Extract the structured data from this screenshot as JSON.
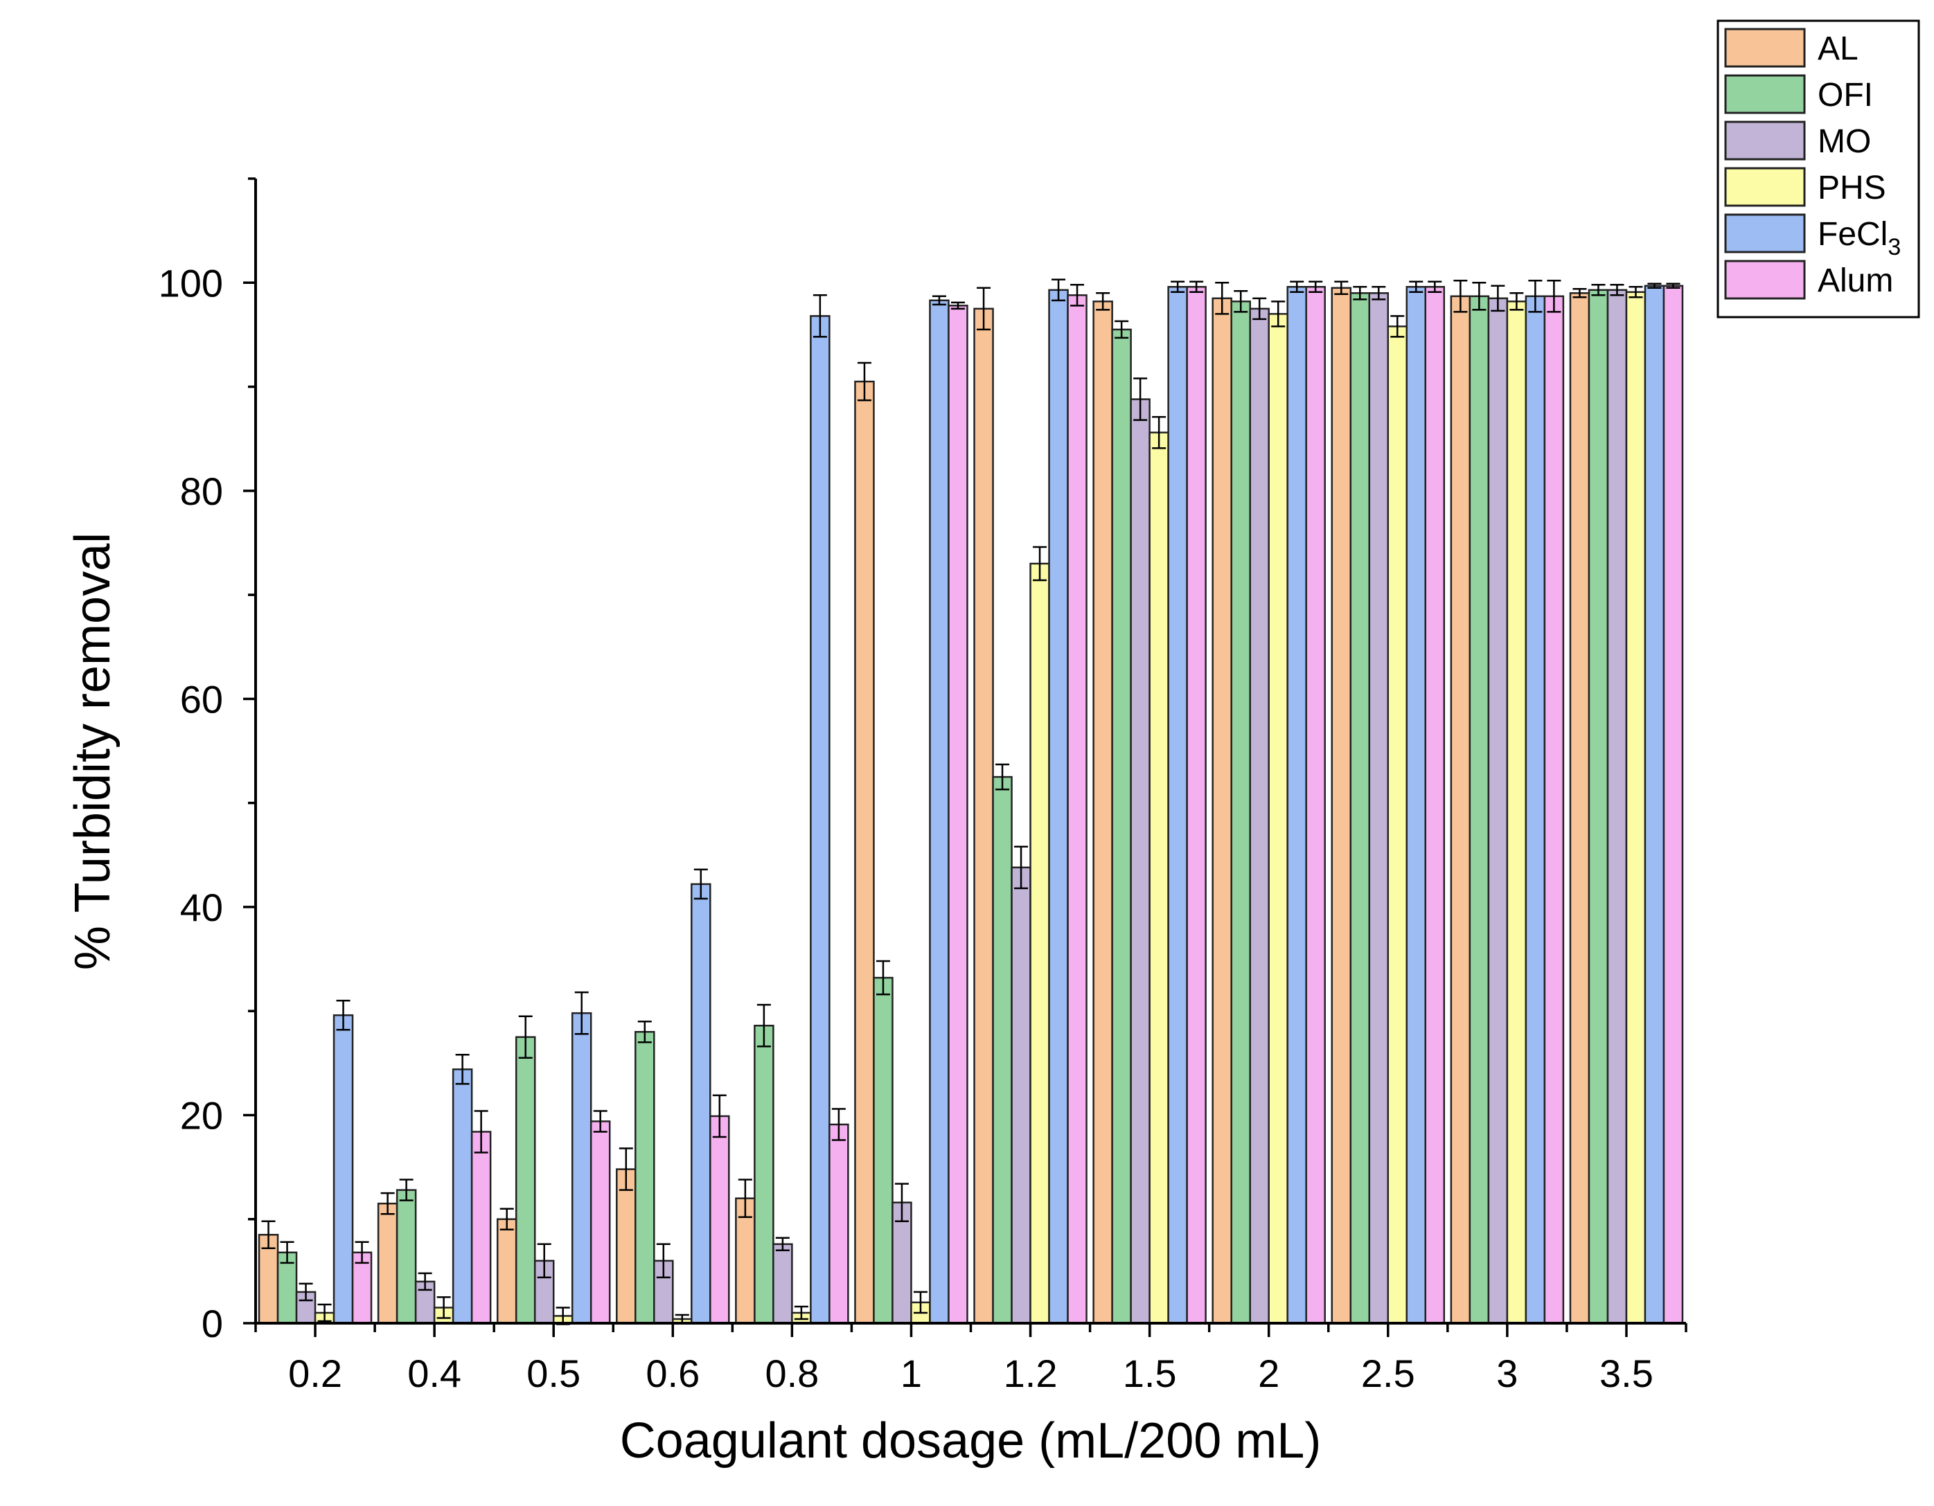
{
  "chart_data": {
    "type": "bar",
    "xlabel": "Coagulant dosage (mL/200 mL)",
    "ylabel": "% Turbidity removal",
    "ylim": [
      0,
      110
    ],
    "yticks": [
      0,
      20,
      40,
      60,
      80,
      100
    ],
    "categories": [
      "0.2",
      "0.4",
      "0.5",
      "0.6",
      "0.8",
      "1",
      "1.2",
      "1.5",
      "2",
      "2.5",
      "3",
      "3.5"
    ],
    "legend_position": "top-right",
    "grid": false,
    "series": [
      {
        "name": "AL",
        "color": "#f8c497",
        "values": [
          8.5,
          11.5,
          10.0,
          14.8,
          12.0,
          90.5,
          97.5,
          98.2,
          98.5,
          99.5,
          98.7,
          99.0
        ],
        "errors": [
          1.3,
          1.0,
          1.0,
          2.0,
          1.8,
          1.8,
          2.0,
          0.8,
          1.5,
          0.6,
          1.5,
          0.4
        ]
      },
      {
        "name": "OFI",
        "color": "#93d3a0",
        "values": [
          6.8,
          12.8,
          27.5,
          28.0,
          28.6,
          33.2,
          52.5,
          95.5,
          98.2,
          99.0,
          98.7,
          99.3
        ],
        "errors": [
          1.0,
          1.0,
          2.0,
          1.0,
          2.0,
          1.6,
          1.2,
          0.8,
          1.0,
          0.6,
          1.3,
          0.5
        ]
      },
      {
        "name": "MO",
        "color": "#c1b4d6",
        "values": [
          3.0,
          4.0,
          6.0,
          6.0,
          7.6,
          11.6,
          43.8,
          88.8,
          97.5,
          99.0,
          98.5,
          99.3
        ],
        "errors": [
          0.8,
          0.8,
          1.6,
          1.6,
          0.6,
          1.8,
          2.0,
          2.0,
          1.0,
          0.6,
          1.2,
          0.5
        ]
      },
      {
        "name": "PHS",
        "color": "#fdfca6",
        "values": [
          1.0,
          1.5,
          0.7,
          0.4,
          1.0,
          2.0,
          73.0,
          85.6,
          97.0,
          95.8,
          98.2,
          99.1
        ],
        "errors": [
          0.8,
          1.0,
          0.8,
          0.4,
          0.6,
          1.0,
          1.6,
          1.5,
          1.2,
          1.0,
          0.8,
          0.5
        ]
      },
      {
        "name": "FeCl3",
        "color": "#9cbcf3",
        "values": [
          29.6,
          24.4,
          29.8,
          42.2,
          96.8,
          98.3,
          99.3,
          99.6,
          99.6,
          99.6,
          98.7,
          99.7
        ],
        "errors": [
          1.4,
          1.4,
          2.0,
          1.4,
          2.0,
          0.4,
          1.0,
          0.5,
          0.5,
          0.5,
          1.5,
          0.2
        ]
      },
      {
        "name": "Alum",
        "color": "#f5b0f0",
        "values": [
          6.8,
          18.4,
          19.4,
          19.9,
          19.1,
          97.8,
          98.8,
          99.6,
          99.6,
          99.6,
          98.7,
          99.7
        ],
        "errors": [
          1.0,
          2.0,
          1.0,
          2.0,
          1.5,
          0.3,
          1.0,
          0.5,
          0.5,
          0.5,
          1.5,
          0.2
        ]
      }
    ]
  },
  "legend": {
    "labels": [
      {
        "main": "AL",
        "sub": ""
      },
      {
        "main": "OFI",
        "sub": ""
      },
      {
        "main": "MO",
        "sub": ""
      },
      {
        "main": "PHS",
        "sub": ""
      },
      {
        "main": "FeCl",
        "sub": "3"
      },
      {
        "main": "Alum",
        "sub": ""
      }
    ]
  }
}
